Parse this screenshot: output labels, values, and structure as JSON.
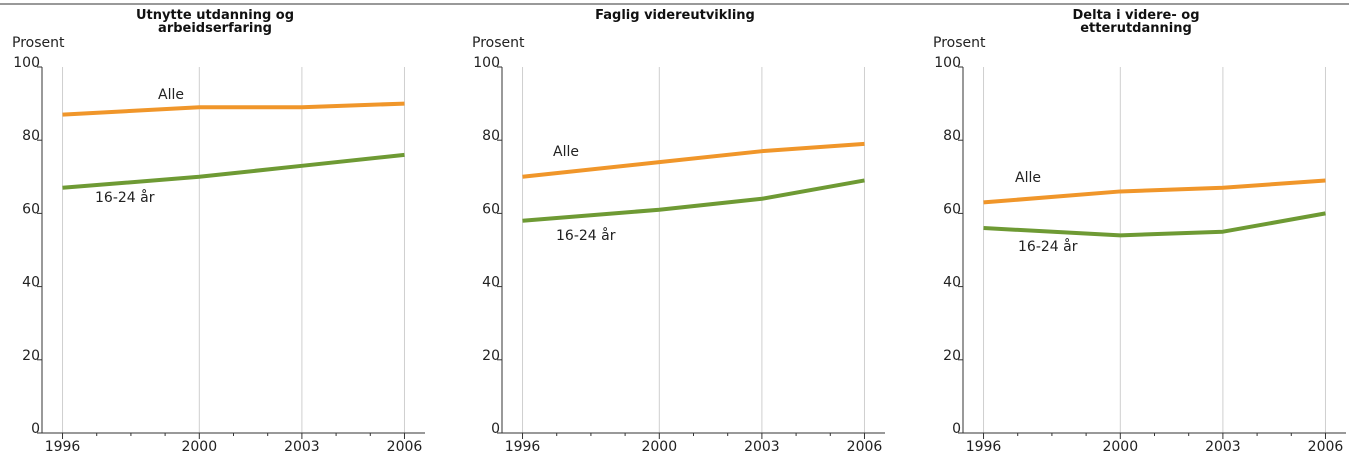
{
  "chart_data": [
    {
      "type": "line",
      "title": "Utnytte utdanning og arbeidserfaring",
      "y_label": "Prosent",
      "x": [
        1996,
        2000,
        2003,
        2006
      ],
      "xlim": [
        1995.4,
        2006.6
      ],
      "xticks": [
        1996,
        2000,
        2003,
        2006
      ],
      "ylim": [
        0,
        100
      ],
      "yticks": [
        0,
        20,
        40,
        60,
        80,
        100
      ],
      "grid": true,
      "series": [
        {
          "name": "Alle",
          "color": "#f0962a",
          "values": [
            87,
            89,
            89,
            90
          ]
        },
        {
          "name": "16-24 år",
          "color": "#6e9a34",
          "values": [
            67,
            70,
            73,
            76
          ]
        }
      ]
    },
    {
      "type": "line",
      "title": "Faglig videreutvikling",
      "y_label": "Prosent",
      "x": [
        1996,
        2000,
        2003,
        2006
      ],
      "xlim": [
        1995.4,
        2006.6
      ],
      "xticks": [
        1996,
        2000,
        2003,
        2006
      ],
      "ylim": [
        0,
        100
      ],
      "yticks": [
        0,
        20,
        40,
        60,
        80,
        100
      ],
      "grid": true,
      "series": [
        {
          "name": "Alle",
          "color": "#f0962a",
          "values": [
            70,
            74,
            77,
            79
          ]
        },
        {
          "name": "16-24 år",
          "color": "#6e9a34",
          "values": [
            58,
            61,
            64,
            69
          ]
        }
      ]
    },
    {
      "type": "line",
      "title": "Delta i videre- og etterutdanning",
      "y_label": "Prosent",
      "x": [
        1996,
        2000,
        2003,
        2006
      ],
      "xlim": [
        1995.4,
        2006.6
      ],
      "xticks": [
        1996,
        2000,
        2003,
        2006
      ],
      "ylim": [
        0,
        100
      ],
      "yticks": [
        0,
        20,
        40,
        60,
        80,
        100
      ],
      "grid": true,
      "series": [
        {
          "name": "Alle",
          "color": "#f0962a",
          "values": [
            63,
            66,
            67,
            69
          ]
        },
        {
          "name": "16-24 år",
          "color": "#6e9a34",
          "values": [
            56,
            54,
            55,
            60
          ]
        }
      ]
    }
  ]
}
